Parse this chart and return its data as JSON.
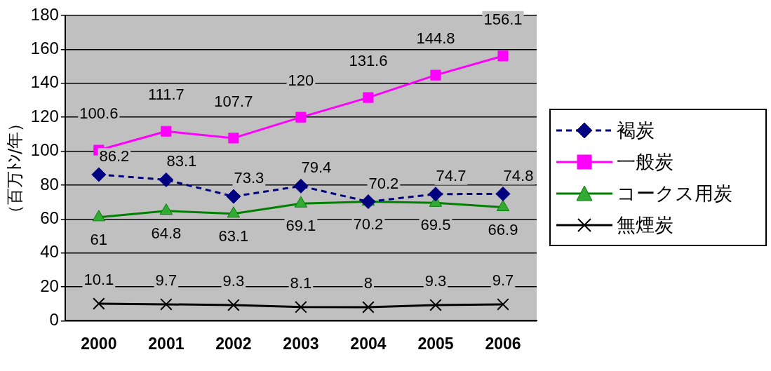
{
  "chart_data": {
    "type": "line",
    "ylabel": "（百万ﾄﾝ/年）",
    "categories": [
      "2000",
      "2001",
      "2002",
      "2003",
      "2004",
      "2005",
      "2006"
    ],
    "series": [
      {
        "name": "褐炭",
        "color": "#000080",
        "marker": "diamond",
        "line_style": "dashed",
        "values": [
          86.2,
          83.1,
          73.3,
          79.4,
          70.2,
          74.7,
          74.8
        ]
      },
      {
        "name": "一般炭",
        "color": "#ff00ff",
        "marker": "square",
        "line_style": "solid",
        "values": [
          100.6,
          111.7,
          107.7,
          120,
          131.6,
          144.8,
          156.1
        ]
      },
      {
        "name": "コークス用炭",
        "color": "#008000",
        "marker": "triangle",
        "line_style": "solid",
        "values": [
          61,
          64.8,
          63.1,
          69.1,
          70.2,
          69.5,
          66.9
        ]
      },
      {
        "name": "無煙炭",
        "color": "#000000",
        "marker": "cross",
        "line_style": "solid",
        "values": [
          10.1,
          9.7,
          9.3,
          8.1,
          8,
          9.3,
          9.7
        ]
      }
    ],
    "ylim": [
      0,
      180
    ],
    "yticks": [
      0,
      20,
      40,
      60,
      80,
      100,
      120,
      140,
      160,
      180
    ],
    "grid": "y",
    "legend": "right",
    "data_labels": true
  }
}
